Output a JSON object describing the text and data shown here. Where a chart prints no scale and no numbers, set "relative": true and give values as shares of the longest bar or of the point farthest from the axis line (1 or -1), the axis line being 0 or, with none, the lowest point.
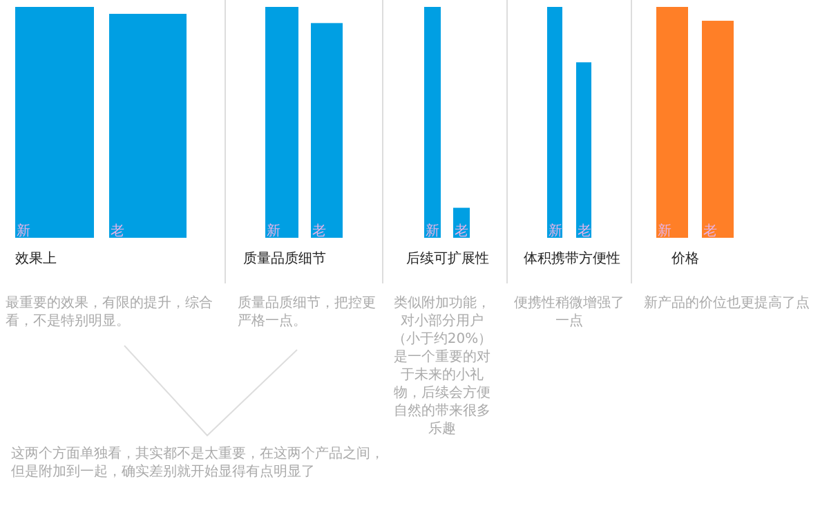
{
  "chart_data": [
    {
      "type": "bar",
      "relative": true,
      "categories": [
        "新",
        "老"
      ],
      "values": [
        1,
        0.97
      ],
      "color": "#009fe3",
      "xlabel": "效果上",
      "annotations": [
        "最重要的效果，有限的提升，综合看，不是特别明显。",
        "这两个方面单独看，其实都不是太重要，在这两个产品之间，但是附加到一起，确实差别就开始显得有点明显了"
      ]
    },
    {
      "type": "bar",
      "relative": true,
      "categories": [
        "新",
        "老"
      ],
      "values": [
        1,
        0.93
      ],
      "color": "#009fe3",
      "xlabel": "质量品质细节",
      "annotations": [
        "质量品质细节，把控更严格一点。"
      ]
    },
    {
      "type": "bar",
      "relative": true,
      "categories": [
        "新",
        "老"
      ],
      "values": [
        1,
        0.13
      ],
      "color": "#009fe3",
      "xlabel": "后续可扩展性",
      "annotations": [
        "类似附加功能，对小部分用户（小于约20%）是一个重要的对于未来的小礼物，后续会方便自然的带来很多乐趣"
      ]
    },
    {
      "type": "bar",
      "relative": true,
      "categories": [
        "新",
        "老"
      ],
      "values": [
        1,
        0.76
      ],
      "color": "#009fe3",
      "xlabel": "体积携带方便性",
      "annotations": [
        "便携性稍微增强了一点"
      ]
    },
    {
      "type": "bar",
      "relative": true,
      "categories": [
        "新",
        "老"
      ],
      "values": [
        1,
        0.94
      ],
      "color": "#ff7f27",
      "xlabel": "价格",
      "annotations": [
        "新产品的价位也更提高了点"
      ]
    }
  ]
}
